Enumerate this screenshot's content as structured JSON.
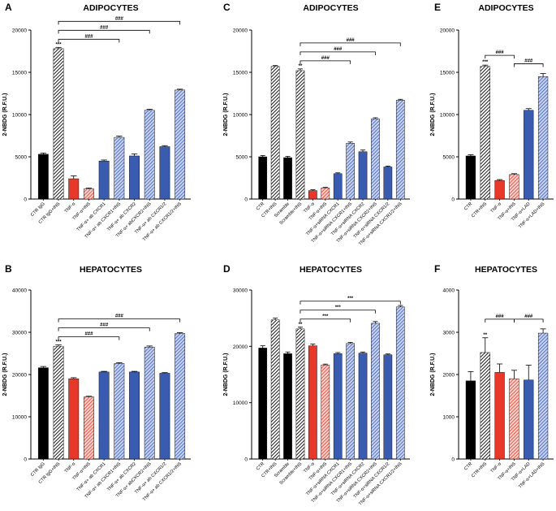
{
  "colors": {
    "black": "#000000",
    "red": "#e8382a",
    "salmon": "#f2877b",
    "blue": "#3a5cb0",
    "lightblue": "#8fa4de"
  },
  "chart_data": [
    {
      "id": "A",
      "panel_letter": "A",
      "type": "bar",
      "title": "ADIPOCYTES",
      "ylabel": "2-NBDG (R.F.U.)",
      "ylim": [
        0,
        20000
      ],
      "yticks": [
        "0",
        "5000",
        "10000",
        "15000",
        "20000"
      ],
      "categories": [
        "CTR IgG",
        "CTR IgG+INS",
        "TNF-α",
        "TNF-α+INS",
        "TNF-α+ ab CXCR1",
        "TNF-α+ ab CXCR1+INS",
        "TNF-α+ ab CXCR2",
        "TNF-α+ abCXCR2+INS",
        "TNF-α+ ab CXCR1/2",
        "TNF-α+ ab CXCR1/2+INS"
      ],
      "values": [
        5300,
        17800,
        2400,
        1200,
        4500,
        7300,
        5100,
        10500,
        6200,
        12900
      ],
      "errors": [
        150,
        150,
        350,
        100,
        120,
        150,
        250,
        120,
        120,
        100
      ],
      "colors": [
        "black",
        "black",
        "red",
        "salmon",
        "blue",
        "lightblue",
        "blue",
        "lightblue",
        "blue",
        "lightblue"
      ],
      "hatched": [
        false,
        true,
        false,
        true,
        false,
        true,
        false,
        true,
        false,
        true
      ],
      "bar_labels": [
        {
          "index": 1,
          "text": "***"
        }
      ],
      "brackets": [
        {
          "from": 1,
          "to": 5,
          "text": "###"
        },
        {
          "from": 1,
          "to": 7,
          "text": "###"
        },
        {
          "from": 1,
          "to": 9,
          "text": "###"
        }
      ]
    },
    {
      "id": "B",
      "panel_letter": "B",
      "type": "bar",
      "title": "HEPATOCYTES",
      "ylabel": "2-NBDG (R.F.U.)",
      "ylim": [
        0,
        40000
      ],
      "yticks": [
        "0",
        "10000",
        "20000",
        "30000",
        "40000"
      ],
      "categories": [
        "CTR IgG",
        "CTR IgG+INS",
        "TNF-α",
        "TNF-α+INS",
        "TNF-α+ ab CXCR1",
        "TNF-α+ ab CXCR1+INS",
        "TNF-α+ ab CXCR2",
        "TNF-α+ abCXCR2+INS",
        "TNF-α+ ab CXCR1/2",
        "TNF-α+ ab CXCR1/2+INS"
      ],
      "values": [
        21600,
        26700,
        19000,
        14700,
        20600,
        22600,
        20600,
        26500,
        20300,
        29700
      ],
      "errors": [
        300,
        300,
        250,
        150,
        150,
        200,
        150,
        250,
        150,
        200
      ],
      "colors": [
        "black",
        "black",
        "red",
        "salmon",
        "blue",
        "lightblue",
        "blue",
        "lightblue",
        "blue",
        "lightblue"
      ],
      "hatched": [
        false,
        true,
        false,
        true,
        false,
        true,
        false,
        true,
        false,
        true
      ],
      "bar_labels": [
        {
          "index": 1,
          "text": "***"
        }
      ],
      "brackets": [
        {
          "from": 1,
          "to": 5,
          "text": "###"
        },
        {
          "from": 1,
          "to": 7,
          "text": "###"
        },
        {
          "from": 1,
          "to": 9,
          "text": "###"
        }
      ]
    },
    {
      "id": "C",
      "panel_letter": "C",
      "type": "bar",
      "title": "ADIPOCYTES",
      "ylabel": "2-NBDG (R.F.U.)",
      "ylim": [
        0,
        20000
      ],
      "yticks": [
        "0",
        "5000",
        "10000",
        "15000",
        "20000"
      ],
      "categories": [
        "CTR",
        "CTR+INS",
        "Scramble",
        "Scramble+INS",
        "TNF-α",
        "TNF-α+INS",
        "TNF-α+siRNA CXCR1",
        "TNF-α+siRNA CXCR1+INS",
        "TNF-α+siRNA CXCR2",
        "TNF-α+siRNA CXCR2+INS",
        "TNF-α+siRNA CXCR1/2",
        "TNF-α+siRNA CXCR1/2+INS"
      ],
      "values": [
        5000,
        15700,
        4900,
        15200,
        1000,
        1300,
        3000,
        6600,
        5600,
        9500,
        3800,
        11700
      ],
      "errors": [
        150,
        100,
        150,
        200,
        100,
        80,
        100,
        150,
        200,
        120,
        100,
        100
      ],
      "colors": [
        "black",
        "black",
        "black",
        "black",
        "red",
        "salmon",
        "blue",
        "lightblue",
        "blue",
        "lightblue",
        "blue",
        "lightblue"
      ],
      "hatched": [
        false,
        true,
        false,
        true,
        false,
        true,
        false,
        true,
        false,
        true,
        false,
        true
      ],
      "bar_labels": [
        {
          "index": 3,
          "text": "**"
        }
      ],
      "brackets": [
        {
          "from": 3,
          "to": 7,
          "text": "###"
        },
        {
          "from": 3,
          "to": 9,
          "text": "###"
        },
        {
          "from": 3,
          "to": 11,
          "text": "###"
        }
      ]
    },
    {
      "id": "D",
      "panel_letter": "D",
      "type": "bar",
      "title": "HEPATOCYTES",
      "ylabel": "2-NBDG (R.F.U.)",
      "ylim": [
        0,
        30000
      ],
      "yticks": [
        "0",
        "10000",
        "20000",
        "30000"
      ],
      "categories": [
        "CTR",
        "CTR+INS",
        "Scramble",
        "Scramble+INS",
        "TNF-α",
        "TNF-α+INS",
        "TNF-α+siRNA CXCR1",
        "TNF-α+siRNA CXCR1+INS",
        "TNF-α+siRNA CXCR2",
        "TNF-α+siRNA CXCR2+INS",
        "TNF-α+siRNA CXCR1/2",
        "TNF-α+siRNA CXCR1/2+INS"
      ],
      "values": [
        19700,
        24700,
        18700,
        23100,
        20100,
        16700,
        18700,
        20500,
        18800,
        24100,
        18500,
        27000
      ],
      "errors": [
        400,
        300,
        300,
        300,
        300,
        150,
        200,
        200,
        200,
        300,
        150,
        250
      ],
      "colors": [
        "black",
        "black",
        "black",
        "black",
        "red",
        "salmon",
        "blue",
        "lightblue",
        "blue",
        "lightblue",
        "blue",
        "lightblue"
      ],
      "hatched": [
        false,
        true,
        false,
        true,
        false,
        true,
        false,
        true,
        false,
        true,
        false,
        true
      ],
      "bar_labels": [
        {
          "index": 3,
          "text": "**"
        }
      ],
      "brackets": [
        {
          "from": 3,
          "to": 7,
          "text": "***"
        },
        {
          "from": 3,
          "to": 9,
          "text": "***"
        },
        {
          "from": 3,
          "to": 11,
          "text": "***"
        }
      ]
    },
    {
      "id": "E",
      "panel_letter": "E",
      "type": "bar",
      "title": "ADIPOCYTES",
      "ylabel": "2-NBDG (R.F.U.)",
      "ylim": [
        0,
        20000
      ],
      "yticks": [
        "0",
        "5000",
        "10000",
        "15000",
        "20000"
      ],
      "categories": [
        "CTR",
        "CTR+INS",
        "TNF-α",
        "TNF-α+INS",
        "TNF-α+LAD",
        "TNF-α+LAD+INS"
      ],
      "values": [
        5100,
        15700,
        2200,
        2900,
        10500,
        14500
      ],
      "errors": [
        150,
        150,
        100,
        100,
        200,
        350
      ],
      "colors": [
        "black",
        "black",
        "red",
        "salmon",
        "blue",
        "lightblue"
      ],
      "hatched": [
        false,
        true,
        false,
        true,
        false,
        true
      ],
      "bar_labels": [
        {
          "index": 1,
          "text": "***"
        }
      ],
      "brackets": [
        {
          "from": 1,
          "to": 3,
          "text": "###"
        },
        {
          "from": 3,
          "to": 5,
          "text": "###"
        }
      ]
    },
    {
      "id": "F",
      "panel_letter": "F",
      "type": "bar",
      "title": "HEPATOCYTES",
      "ylabel": "2-NBDG (R.F.U.)",
      "ylim": [
        0,
        4000
      ],
      "yticks": [
        "0",
        "1000",
        "2000",
        "3000",
        "4000"
      ],
      "categories": [
        "CTR",
        "CTR+INS",
        "TNF-α",
        "TNF-α+INS",
        "TNF-α+LAD",
        "TNF-α+LAD+INS"
      ],
      "values": [
        1850,
        2520,
        2050,
        1900,
        1870,
        2980
      ],
      "errors": [
        220,
        350,
        200,
        200,
        350,
        100
      ],
      "colors": [
        "black",
        "black",
        "red",
        "salmon",
        "blue",
        "lightblue"
      ],
      "hatched": [
        false,
        true,
        false,
        true,
        false,
        true
      ],
      "bar_labels": [
        {
          "index": 1,
          "text": "**"
        }
      ],
      "brackets": [
        {
          "from": 1,
          "to": 3,
          "text": "###"
        },
        {
          "from": 3,
          "to": 5,
          "text": "###"
        }
      ]
    }
  ]
}
